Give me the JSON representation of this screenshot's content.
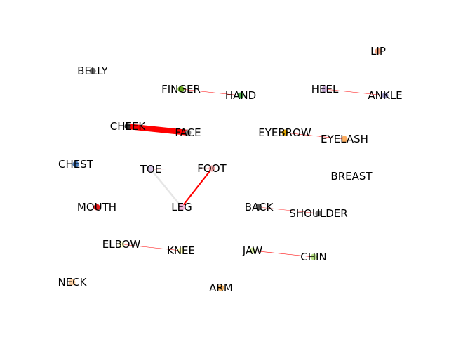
{
  "graph": {
    "nodes": [
      {
        "id": "LIP",
        "label": "LIP",
        "color": "#f4a582"
      },
      {
        "id": "BELLY",
        "label": "BELLY",
        "color": "#666666"
      },
      {
        "id": "FINGER",
        "label": "FINGER",
        "color": "#66a61e"
      },
      {
        "id": "HAND",
        "label": "HAND",
        "color": "#4daf4a"
      },
      {
        "id": "HEEL",
        "label": "HEEL",
        "color": "#c2a5cf"
      },
      {
        "id": "ANKLE",
        "label": "ANKLE",
        "color": "#9e9ac8"
      },
      {
        "id": "CHEEK",
        "label": "CHEEK",
        "color": "#333333"
      },
      {
        "id": "FACE",
        "label": "FACE",
        "color": "#8c8c8c"
      },
      {
        "id": "EYEBROW",
        "label": "EYEBROW",
        "color": "#e6ab02"
      },
      {
        "id": "EYELASH",
        "label": "EYELASH",
        "color": "#fdae61"
      },
      {
        "id": "CHEST",
        "label": "CHEST",
        "color": "#4a7fc1"
      },
      {
        "id": "TOE",
        "label": "TOE",
        "color": "#d8c8e8"
      },
      {
        "id": "FOOT",
        "label": "FOOT",
        "color": "#f4a5a5"
      },
      {
        "id": "BREAST",
        "label": "BREAST",
        "color": "#ffffff"
      },
      {
        "id": "MOUTH",
        "label": "MOUTH",
        "color": "#e41a1c"
      },
      {
        "id": "LEG",
        "label": "LEG",
        "color": "#f1b6da"
      },
      {
        "id": "BACK",
        "label": "BACK",
        "color": "#555555"
      },
      {
        "id": "SHOULDER",
        "label": "SHOULDER",
        "color": "#777777"
      },
      {
        "id": "ELBOW",
        "label": "ELBOW",
        "color": "#ffffcc"
      },
      {
        "id": "KNEE",
        "label": "KNEE",
        "color": "#ffffb3"
      },
      {
        "id": "JAW",
        "label": "JAW",
        "color": "#d9f0a3"
      },
      {
        "id": "CHIN",
        "label": "CHIN",
        "color": "#b8e186"
      },
      {
        "id": "NECK",
        "label": "NECK",
        "color": "#fdd0a2"
      },
      {
        "id": "ARM",
        "label": "ARM",
        "color": "#fdb863"
      }
    ],
    "edges": [
      {
        "source": "CHEEK",
        "target": "FACE",
        "color": "#ff0000",
        "weight": 8
      },
      {
        "source": "FINGER",
        "target": "HAND",
        "color": "#ff0000",
        "weight": 0.5
      },
      {
        "source": "HEEL",
        "target": "ANKLE",
        "color": "#ff0000",
        "weight": 0.5
      },
      {
        "source": "EYEBROW",
        "target": "EYELASH",
        "color": "#ff0000",
        "weight": 0.6
      },
      {
        "source": "TOE",
        "target": "FOOT",
        "color": "#ff0000",
        "weight": 0.4
      },
      {
        "source": "TOE",
        "target": "LEG",
        "color": "#e6e6e6",
        "weight": 2.5
      },
      {
        "source": "FOOT",
        "target": "LEG",
        "color": "#ff0000",
        "weight": 2.2
      },
      {
        "source": "BACK",
        "target": "SHOULDER",
        "color": "#ff0000",
        "weight": 0.4
      },
      {
        "source": "ELBOW",
        "target": "KNEE",
        "color": "#ff0000",
        "weight": 0.5
      },
      {
        "source": "JAW",
        "target": "CHIN",
        "color": "#ff0000",
        "weight": 0.6
      }
    ]
  }
}
